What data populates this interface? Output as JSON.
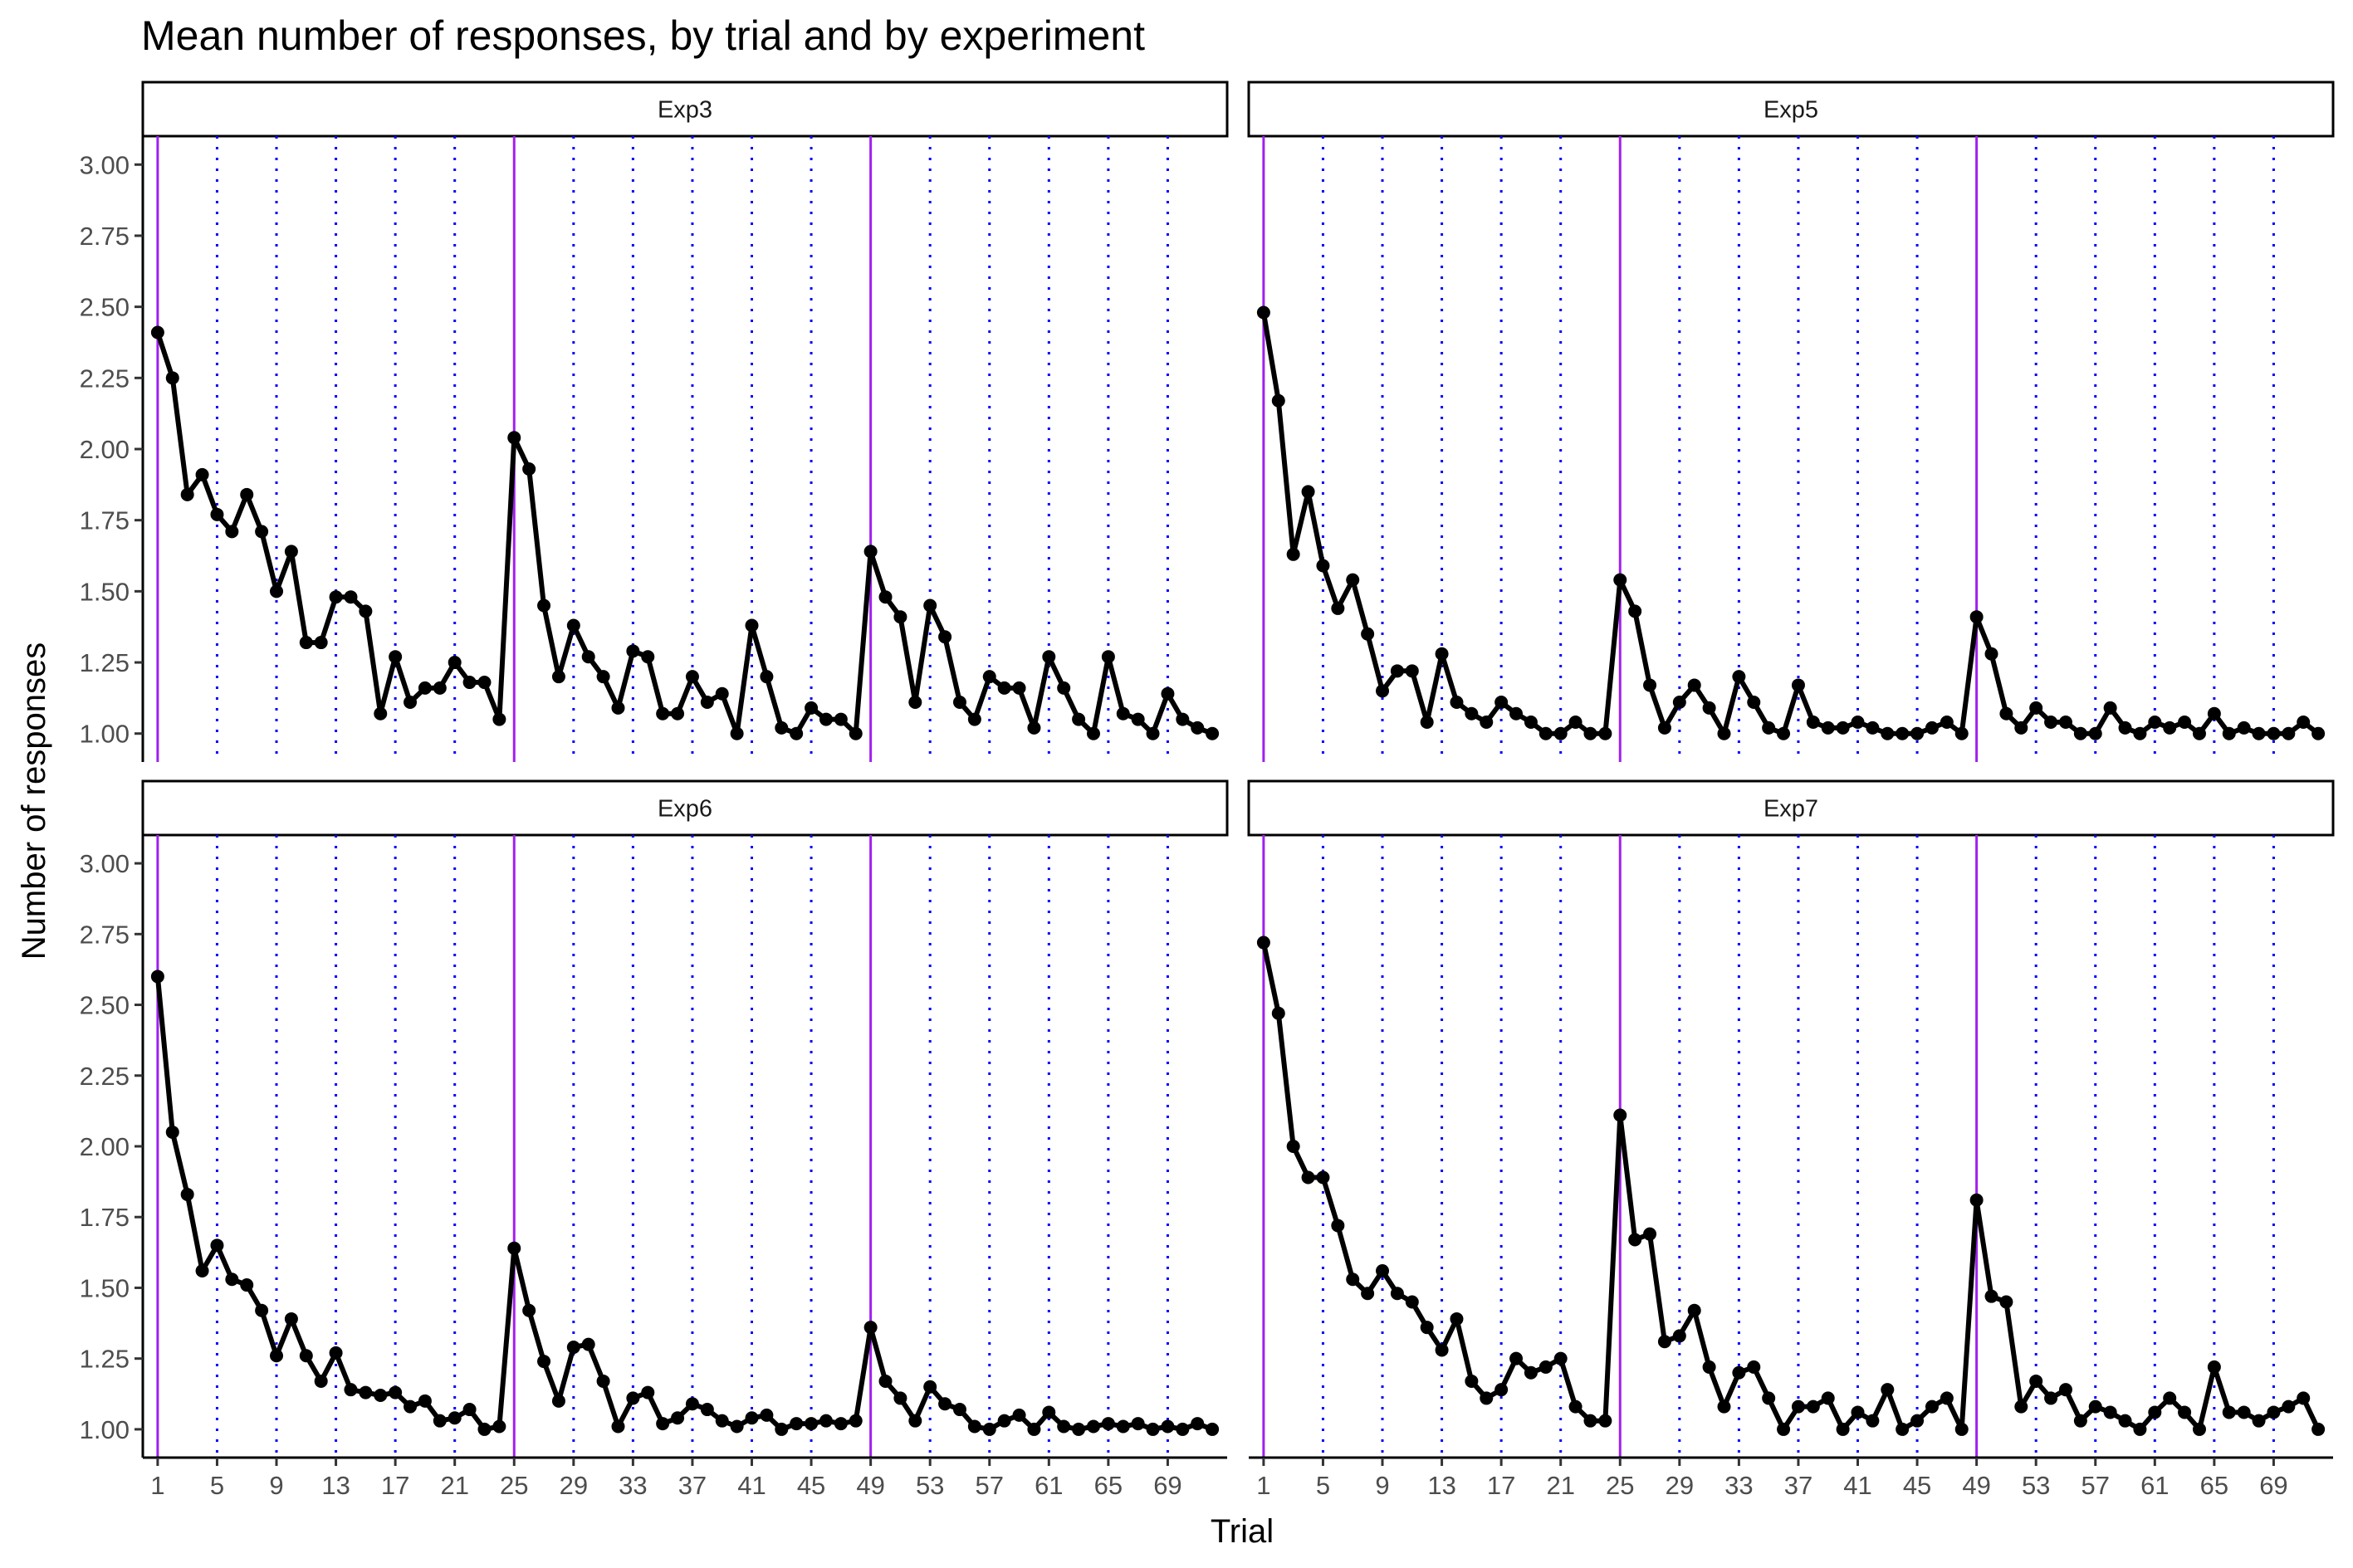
{
  "chart_data": {
    "type": "line",
    "title": "Mean number of responses, by trial and by experiment",
    "xlabel": "Trial",
    "ylabel": "Number of responses",
    "xlim": [
      0,
      73
    ],
    "ylim": [
      0.9,
      3.1
    ],
    "xticks": [
      1,
      5,
      9,
      13,
      17,
      21,
      25,
      29,
      33,
      37,
      41,
      45,
      49,
      53,
      57,
      61,
      65,
      69
    ],
    "yticks": [
      1.0,
      1.25,
      1.5,
      1.75,
      2.0,
      2.25,
      2.5,
      2.75,
      3.0
    ],
    "ytick_labels": [
      "1.00",
      "1.25",
      "1.50",
      "1.75",
      "2.00",
      "2.25",
      "2.50",
      "2.75",
      "3.00"
    ],
    "solid_vlines": [
      1,
      25,
      49
    ],
    "dotted_vlines": [
      5,
      9,
      13,
      17,
      21,
      29,
      33,
      37,
      41,
      45,
      53,
      57,
      61,
      65,
      69
    ],
    "colors": {
      "line": "#000000",
      "solid_vline": "#A020F0",
      "dotted_vline": "#0000FF",
      "strip_border": "#000000"
    },
    "grid": false,
    "panels": [
      {
        "name": "Exp3",
        "x_start": 1,
        "values": [
          2.41,
          2.25,
          1.84,
          1.91,
          1.77,
          1.71,
          1.84,
          1.71,
          1.5,
          1.64,
          1.32,
          1.32,
          1.48,
          1.48,
          1.43,
          1.07,
          1.27,
          1.11,
          1.16,
          1.16,
          1.25,
          1.18,
          1.18,
          1.05,
          2.04,
          1.93,
          1.45,
          1.2,
          1.38,
          1.27,
          1.2,
          1.09,
          1.29,
          1.27,
          1.07,
          1.07,
          1.2,
          1.11,
          1.14,
          1.0,
          1.38,
          1.2,
          1.02,
          1.0,
          1.09,
          1.05,
          1.05,
          1.0,
          1.64,
          1.48,
          1.41,
          1.11,
          1.45,
          1.34,
          1.11,
          1.05,
          1.2,
          1.16,
          1.16,
          1.02,
          1.27,
          1.16,
          1.05,
          1.0,
          1.27,
          1.07,
          1.05,
          1.0,
          1.14,
          1.05,
          1.02,
          1.0
        ]
      },
      {
        "name": "Exp5",
        "x_start": 1,
        "values": [
          2.48,
          2.17,
          1.63,
          1.85,
          1.59,
          1.44,
          1.54,
          1.35,
          1.15,
          1.22,
          1.22,
          1.04,
          1.28,
          1.11,
          1.07,
          1.04,
          1.11,
          1.07,
          1.04,
          1.0,
          1.0,
          1.04,
          1.0,
          1.0,
          1.54,
          1.43,
          1.17,
          1.02,
          1.11,
          1.17,
          1.09,
          1.0,
          1.2,
          1.11,
          1.02,
          1.0,
          1.17,
          1.04,
          1.02,
          1.02,
          1.04,
          1.02,
          1.0,
          1.0,
          1.0,
          1.02,
          1.04,
          1.0,
          1.41,
          1.28,
          1.07,
          1.02,
          1.09,
          1.04,
          1.04,
          1.0,
          1.0,
          1.09,
          1.02,
          1.0,
          1.04,
          1.02,
          1.04,
          1.0,
          1.07,
          1.0,
          1.02,
          1.0,
          1.0,
          1.0,
          1.04,
          1.0
        ]
      },
      {
        "name": "Exp6",
        "x_start": 1,
        "values": [
          2.6,
          2.05,
          1.83,
          1.56,
          1.65,
          1.53,
          1.51,
          1.42,
          1.26,
          1.39,
          1.26,
          1.17,
          1.27,
          1.14,
          1.13,
          1.12,
          1.13,
          1.08,
          1.1,
          1.03,
          1.04,
          1.07,
          1.0,
          1.01,
          1.64,
          1.42,
          1.24,
          1.1,
          1.29,
          1.3,
          1.17,
          1.01,
          1.11,
          1.13,
          1.02,
          1.04,
          1.09,
          1.07,
          1.03,
          1.01,
          1.04,
          1.05,
          1.0,
          1.02,
          1.02,
          1.03,
          1.02,
          1.03,
          1.36,
          1.17,
          1.11,
          1.03,
          1.15,
          1.09,
          1.07,
          1.01,
          1.0,
          1.03,
          1.05,
          1.0,
          1.06,
          1.01,
          1.0,
          1.01,
          1.02,
          1.01,
          1.02,
          1.0,
          1.01,
          1.0,
          1.02,
          1.0
        ]
      },
      {
        "name": "Exp7",
        "x_start": 1,
        "values": [
          2.72,
          2.47,
          2.0,
          1.89,
          1.89,
          1.72,
          1.53,
          1.48,
          1.56,
          1.48,
          1.45,
          1.36,
          1.28,
          1.39,
          1.17,
          1.11,
          1.14,
          1.25,
          1.2,
          1.22,
          1.25,
          1.08,
          1.03,
          1.03,
          2.11,
          1.67,
          1.69,
          1.31,
          1.33,
          1.42,
          1.22,
          1.08,
          1.2,
          1.22,
          1.11,
          1.0,
          1.08,
          1.08,
          1.11,
          1.0,
          1.06,
          1.03,
          1.14,
          1.0,
          1.03,
          1.08,
          1.11,
          1.0,
          1.81,
          1.47,
          1.45,
          1.08,
          1.17,
          1.11,
          1.14,
          1.03,
          1.08,
          1.06,
          1.03,
          1.0,
          1.06,
          1.11,
          1.06,
          1.0,
          1.22,
          1.06,
          1.06,
          1.03,
          1.06,
          1.08,
          1.11,
          1.0
        ]
      }
    ]
  }
}
